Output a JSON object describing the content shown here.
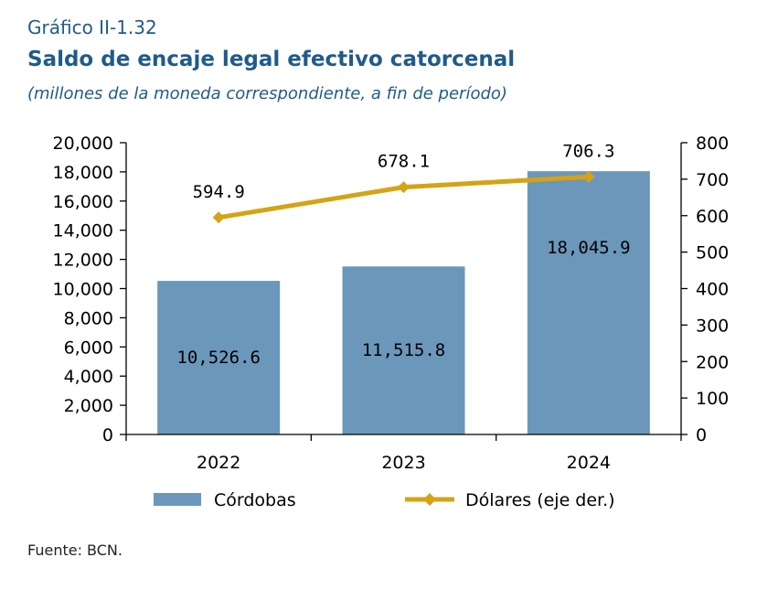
{
  "header": {
    "label": "Gráfico II-1.32",
    "title": "Saldo de encaje legal efectivo catorcenal",
    "subtitle": "(millones de la moneda correspondiente, a fin de período)"
  },
  "source": "Fuente: BCN.",
  "colors": {
    "bar": "#6b97bb",
    "line": "#d4a316",
    "title": "#1f5b8a"
  },
  "chart_data": {
    "type": "bar",
    "categories": [
      "2022",
      "2023",
      "2024"
    ],
    "series": [
      {
        "name": "Córdobas",
        "type": "bar",
        "axis": "left",
        "values": [
          10526.6,
          11515.8,
          18045.9
        ],
        "labels": [
          "10,526.6",
          "11,515.8",
          "18,045.9"
        ]
      },
      {
        "name": "Dólares (eje der.)",
        "type": "line",
        "axis": "right",
        "values": [
          594.9,
          678.1,
          706.3
        ],
        "labels": [
          "594.9",
          "678.1",
          "706.3"
        ]
      }
    ],
    "ylim_left": [
      0,
      20000
    ],
    "yticks_left": [
      "0",
      "2,000",
      "4,000",
      "6,000",
      "8,000",
      "10,000",
      "12,000",
      "14,000",
      "16,000",
      "18,000",
      "20,000"
    ],
    "ylim_right": [
      0,
      800
    ],
    "yticks_right": [
      "0",
      "100",
      "200",
      "300",
      "400",
      "500",
      "600",
      "700",
      "800"
    ],
    "grid": false,
    "legend": "bottom"
  }
}
